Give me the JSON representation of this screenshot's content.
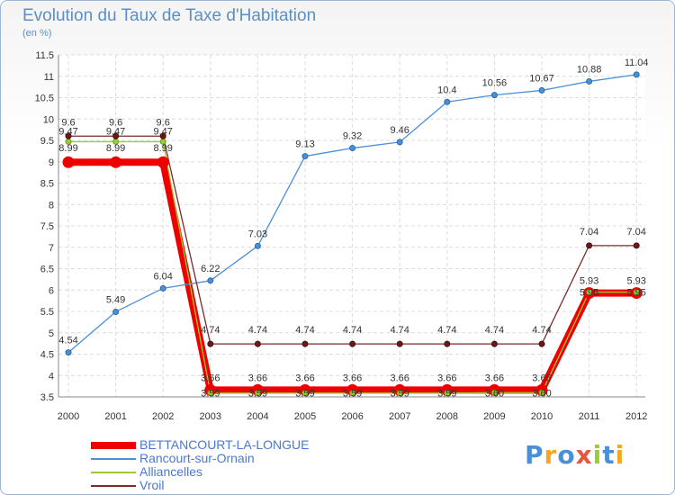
{
  "chart_data": {
    "type": "line",
    "title": "Evolution du Taux de Taxe d'Habitation",
    "subtitle": "(en %)",
    "xlabel": "",
    "ylabel": "",
    "categories": [
      "2000",
      "2001",
      "2002",
      "2003",
      "2004",
      "2005",
      "2006",
      "2007",
      "2008",
      "2009",
      "2010",
      "2011",
      "2012"
    ],
    "ylim": [
      3.5,
      11.5
    ],
    "yticks": [
      "3.5",
      "4",
      "4.5",
      "5",
      "5.5",
      "6",
      "6.5",
      "7",
      "7.5",
      "8",
      "8.5",
      "9",
      "9.5",
      "10",
      "10.5",
      "11",
      "11.5"
    ],
    "grid": true,
    "legend_position": "bottom-left",
    "series": [
      {
        "name": "BETTANCOURT-LA-LONGUE",
        "color": "#ee0000",
        "values": [
          8.99,
          8.99,
          8.99,
          3.66,
          3.66,
          3.66,
          3.66,
          3.66,
          3.66,
          3.66,
          3.66,
          5.93,
          5.93
        ],
        "labels": [
          "8.99",
          "8.99",
          "8.99",
          "3.66",
          "3.66",
          "3.66",
          "3.66",
          "3.66",
          "3.66",
          "3.66",
          "3.66",
          "5.93",
          "5.93"
        ]
      },
      {
        "name": "Rancourt-sur-Ornain",
        "color": "#4a90d9",
        "values": [
          4.54,
          5.49,
          6.04,
          6.22,
          7.03,
          9.13,
          9.32,
          9.46,
          10.4,
          10.56,
          10.67,
          10.88,
          11.04
        ],
        "labels": [
          "4.54",
          "5.49",
          "6.04",
          "6.22",
          "7.03",
          "9.13",
          "9.32",
          "9.46",
          "10.4",
          "10.56",
          "10.67",
          "10.88",
          "11.04"
        ]
      },
      {
        "name": "Alliancelles",
        "color": "#9acd32",
        "values": [
          9.47,
          9.47,
          9.47,
          3.59,
          3.59,
          3.59,
          3.59,
          3.59,
          3.59,
          3.6,
          3.6,
          5.95,
          5.95
        ],
        "labels": [
          "9.47",
          "9.47",
          "9.47",
          "3.59",
          "3.59",
          "3.59",
          "3.59",
          "3.59",
          "3.59",
          "3.60",
          "3.60",
          "5.95",
          "5.95"
        ]
      },
      {
        "name": "Vroil",
        "color": "#7a2a2a",
        "values": [
          9.6,
          9.6,
          9.6,
          4.74,
          4.74,
          4.74,
          4.74,
          4.74,
          4.74,
          4.74,
          4.74,
          7.04,
          7.04
        ],
        "labels": [
          "9.6",
          "9.6",
          "9.6",
          "4.74",
          "4.74",
          "4.74",
          "4.74",
          "4.74",
          "4.74",
          "4.74",
          "4.74",
          "7.04",
          "7.04"
        ]
      }
    ]
  },
  "logo": {
    "text": "Proxiti"
  }
}
